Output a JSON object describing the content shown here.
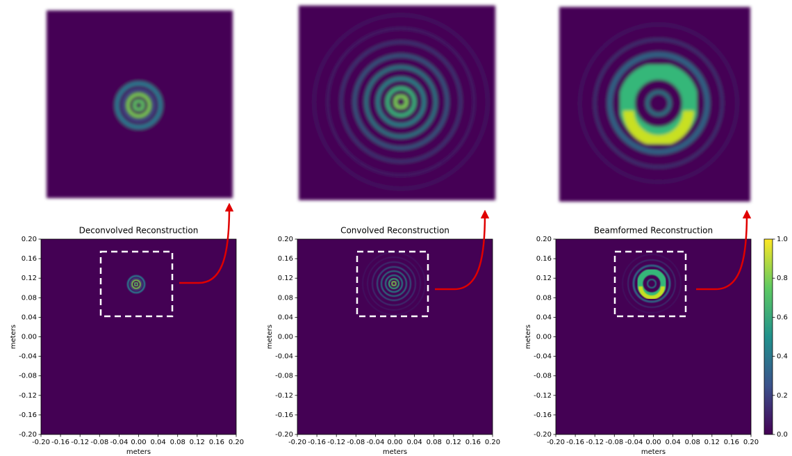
{
  "chart_data": [
    {
      "type": "heatmap",
      "title": "Deconvolved Reconstruction",
      "xlabel": "meters",
      "ylabel": "meters",
      "xlim": [
        -0.2,
        0.2
      ],
      "ylim": [
        -0.2,
        0.2
      ],
      "xticks": [
        {
          "value": -0.2,
          "label": "-0.20"
        },
        {
          "value": -0.16,
          "label": "-0.16"
        },
        {
          "value": -0.12,
          "label": "-0.12"
        },
        {
          "value": -0.08,
          "label": "-0.08"
        },
        {
          "value": -0.04,
          "label": "-0.04"
        },
        {
          "value": 0,
          "label": "0.00"
        },
        {
          "value": 0.04,
          "label": "0.04"
        },
        {
          "value": 0.08,
          "label": "0.08"
        },
        {
          "value": 0.12,
          "label": "0.12"
        },
        {
          "value": 0.16,
          "label": "0.16"
        },
        {
          "value": 0.2,
          "label": "0.20"
        }
      ],
      "yticks": [
        {
          "value": -0.2,
          "label": "-0.20"
        },
        {
          "value": -0.16,
          "label": "-0.16"
        },
        {
          "value": -0.12,
          "label": "-0.12"
        },
        {
          "value": -0.08,
          "label": "-0.08"
        },
        {
          "value": -0.04,
          "label": "-0.04"
        },
        {
          "value": 0,
          "label": "0.00"
        },
        {
          "value": 0.04,
          "label": "0.04"
        },
        {
          "value": 0.08,
          "label": "0.08"
        },
        {
          "value": 0.12,
          "label": "0.12"
        },
        {
          "value": 0.16,
          "label": "0.16"
        },
        {
          "value": 0.2,
          "label": "0.20"
        }
      ]
    },
    {
      "type": "heatmap",
      "title": "Convolved Reconstruction",
      "xlabel": "meters",
      "ylabel": "meters",
      "xlim": [
        -0.2,
        0.2
      ],
      "ylim": [
        -0.2,
        0.2
      ],
      "xticks": [
        {
          "value": -0.2,
          "label": "-0.20"
        },
        {
          "value": -0.16,
          "label": "-0.16"
        },
        {
          "value": -0.12,
          "label": "-0.12"
        },
        {
          "value": -0.08,
          "label": "-0.08"
        },
        {
          "value": -0.04,
          "label": "-0.04"
        },
        {
          "value": 0,
          "label": "0.00"
        },
        {
          "value": 0.04,
          "label": "0.04"
        },
        {
          "value": 0.08,
          "label": "0.08"
        },
        {
          "value": 0.12,
          "label": "0.12"
        },
        {
          "value": 0.16,
          "label": "0.16"
        },
        {
          "value": 0.2,
          "label": "0.20"
        }
      ],
      "yticks": [
        {
          "value": -0.2,
          "label": "-0.20"
        },
        {
          "value": -0.16,
          "label": "-0.16"
        },
        {
          "value": -0.12,
          "label": "-0.12"
        },
        {
          "value": -0.08,
          "label": "-0.08"
        },
        {
          "value": -0.04,
          "label": "-0.04"
        },
        {
          "value": 0,
          "label": "0.00"
        },
        {
          "value": 0.04,
          "label": "0.04"
        },
        {
          "value": 0.08,
          "label": "0.08"
        },
        {
          "value": 0.12,
          "label": "0.12"
        },
        {
          "value": 0.16,
          "label": "0.16"
        },
        {
          "value": 0.2,
          "label": "0.20"
        }
      ]
    },
    {
      "type": "heatmap",
      "title": "Beamformed Reconstruction",
      "xlabel": "meters",
      "ylabel": "meters",
      "xlim": [
        -0.2,
        0.2
      ],
      "ylim": [
        -0.2,
        0.2
      ],
      "xticks": [
        {
          "value": -0.2,
          "label": "-0.20"
        },
        {
          "value": -0.16,
          "label": "-0.16"
        },
        {
          "value": -0.12,
          "label": "-0.12"
        },
        {
          "value": -0.08,
          "label": "-0.08"
        },
        {
          "value": -0.04,
          "label": "-0.04"
        },
        {
          "value": 0,
          "label": "0.00"
        },
        {
          "value": 0.04,
          "label": "0.04"
        },
        {
          "value": 0.08,
          "label": "0.08"
        },
        {
          "value": 0.12,
          "label": "0.12"
        },
        {
          "value": 0.16,
          "label": "0.16"
        },
        {
          "value": 0.2,
          "label": "0.20"
        }
      ],
      "yticks": [
        {
          "value": -0.2,
          "label": "-0.20"
        },
        {
          "value": -0.16,
          "label": "-0.16"
        },
        {
          "value": -0.12,
          "label": "-0.12"
        },
        {
          "value": -0.08,
          "label": "-0.08"
        },
        {
          "value": -0.04,
          "label": "-0.04"
        },
        {
          "value": 0,
          "label": "0.00"
        },
        {
          "value": 0.04,
          "label": "0.04"
        },
        {
          "value": 0.08,
          "label": "0.08"
        },
        {
          "value": 0.12,
          "label": "0.12"
        },
        {
          "value": 0.16,
          "label": "0.16"
        },
        {
          "value": 0.2,
          "label": "0.20"
        }
      ],
      "clim": [
        0,
        1
      ],
      "cticks": [
        {
          "value": 0,
          "label": "0.0"
        },
        {
          "value": 0.2,
          "label": "0.2"
        },
        {
          "value": 0.4,
          "label": "0.4"
        },
        {
          "value": 0.6,
          "label": "0.6"
        },
        {
          "value": 0.8,
          "label": "0.8"
        },
        {
          "value": 1,
          "label": "1.0"
        }
      ]
    }
  ]
}
